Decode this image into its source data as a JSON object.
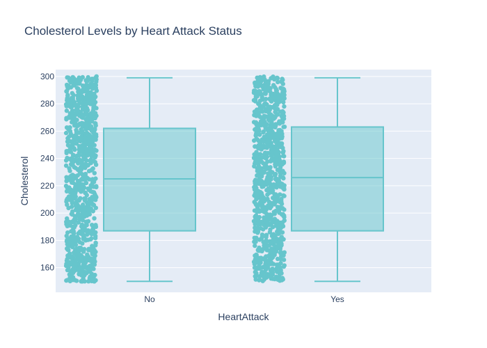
{
  "chart_data": {
    "type": "box",
    "title": "Cholesterol Levels by Heart Attack Status",
    "xlabel": "HeartAttack",
    "ylabel": "Cholesterol",
    "categories": [
      "No",
      "Yes"
    ],
    "ylim": [
      142,
      305
    ],
    "yticks": [
      160,
      180,
      200,
      220,
      240,
      260,
      280,
      300
    ],
    "boxes": [
      {
        "category": "No",
        "min": 150,
        "q1": 187,
        "median": 225,
        "q3": 262,
        "max": 299,
        "points_range": [
          150,
          300
        ]
      },
      {
        "category": "Yes",
        "min": 150,
        "q1": 187,
        "median": 226,
        "q3": 263,
        "max": 299,
        "points_range": [
          150,
          300
        ]
      }
    ],
    "colors": {
      "plot_bg": "#e5ecf6",
      "grid": "#ffffff",
      "box_line": "#66c5cc",
      "box_fill": "rgba(102,197,204,0.5)",
      "points": "#66c5cc"
    },
    "grid": true,
    "legend": "none"
  }
}
